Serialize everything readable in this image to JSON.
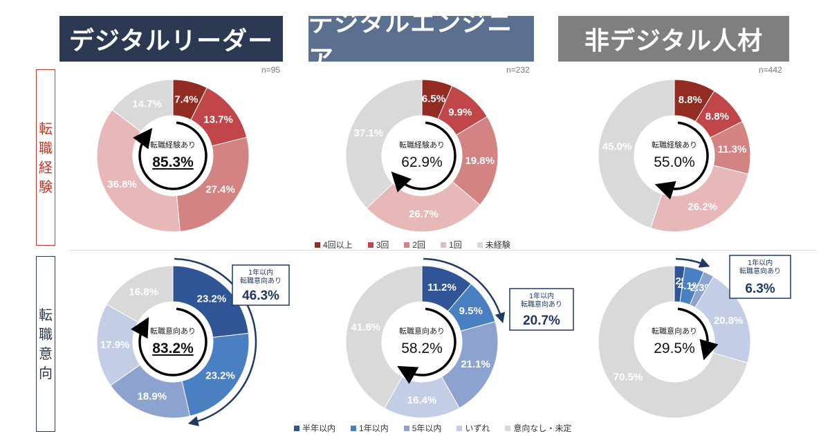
{
  "headers": [
    "デジタルリーダー",
    "デジタルエンジニア",
    "非デジタル人材"
  ],
  "n_counts": [
    "n=95",
    "n=232",
    "n=442"
  ],
  "row_labels": [
    "転職経験",
    "転職意向"
  ],
  "legend_experience": [
    "4回以上",
    "3回",
    "2回",
    "1回",
    "未経験"
  ],
  "legend_intention": [
    "半年以内",
    "1年以内",
    "5年以内",
    "いずれ",
    "意向なし・未定"
  ],
  "colors": {
    "experience": [
      "#922b21",
      "#c0464a",
      "#d48383",
      "#e8b7b7",
      "#d9d9d9"
    ],
    "intention": [
      "#2f5597",
      "#4a7fc1",
      "#8da3cf",
      "#c3cee6",
      "#d9d9d9"
    ],
    "arrow": "#1f3864",
    "header_leader": "#2b3a52",
    "header_engineer": "#5b6f91",
    "header_non": "#7f7f7f"
  },
  "chart_data": [
    {
      "type": "pie",
      "row": "転職経験",
      "group": "デジタルリーダー",
      "categories": [
        "4回以上",
        "3回",
        "2回",
        "1回",
        "未経験"
      ],
      "values": [
        7.4,
        13.7,
        27.4,
        36.8,
        14.7
      ],
      "center_label": "転職経験あり",
      "center_value": "85.3%"
    },
    {
      "type": "pie",
      "row": "転職経験",
      "group": "デジタルエンジニア",
      "categories": [
        "4回以上",
        "3回",
        "2回",
        "1回",
        "未経験"
      ],
      "values": [
        6.5,
        9.9,
        19.8,
        26.7,
        37.1
      ],
      "center_label": "転職経験あり",
      "center_value": "62.9%"
    },
    {
      "type": "pie",
      "row": "転職経験",
      "group": "非デジタル人材",
      "categories": [
        "4回以上",
        "3回",
        "2回",
        "1回",
        "未経験"
      ],
      "values": [
        8.8,
        8.8,
        11.3,
        26.2,
        45.0
      ],
      "center_label": "転職経験あり",
      "center_value": "55.0%"
    },
    {
      "type": "pie",
      "row": "転職意向",
      "group": "デジタルリーダー",
      "categories": [
        "半年以内",
        "1年以内",
        "5年以内",
        "いずれ",
        "意向なし・未定"
      ],
      "values": [
        23.2,
        23.2,
        18.9,
        17.9,
        16.8
      ],
      "center_label": "転職意向あり",
      "center_value": "83.2%",
      "callout_label": "1年以内\n転職意向あり",
      "callout_value": "46.3%"
    },
    {
      "type": "pie",
      "row": "転職意向",
      "group": "デジタルエンジニア",
      "categories": [
        "半年以内",
        "1年以内",
        "5年以内",
        "いずれ",
        "意向なし・未定"
      ],
      "values": [
        11.2,
        9.5,
        21.1,
        16.4,
        41.8
      ],
      "center_label": "転職意向あり",
      "center_value": "58.2%",
      "callout_label": "1年以内\n転職意向あり",
      "callout_value": "20.7%"
    },
    {
      "type": "pie",
      "row": "転職意向",
      "group": "非デジタル人材",
      "categories": [
        "半年以内",
        "1年以内",
        "5年以内",
        "いずれ",
        "意向なし・未定"
      ],
      "values": [
        2.2,
        4.1,
        2.3,
        20.8,
        70.5
      ],
      "center_label": "転職意向あり",
      "center_value": "29.5%",
      "callout_label": "1年以内\n転職意向あり",
      "callout_value": "6.3%"
    }
  ]
}
